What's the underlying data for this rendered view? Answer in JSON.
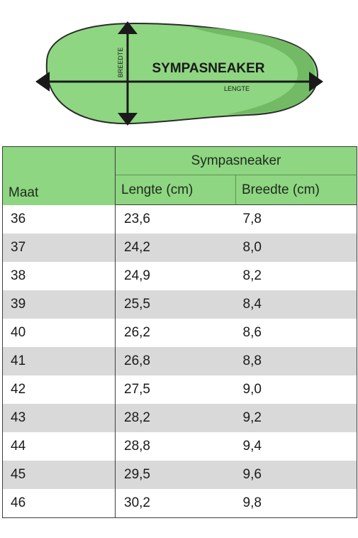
{
  "diagram": {
    "title": "SYMPASNEAKER",
    "length_label": "LENGTE",
    "width_label": "BREEDTE",
    "colors": {
      "insole": "#8ed681",
      "insole_dark": "#6fb860",
      "outline": "#2b2b2b"
    }
  },
  "table": {
    "group_header": "Sympasneaker",
    "columns": {
      "size": "Maat",
      "length": "Lengte (cm)",
      "width": "Breedte (cm)"
    },
    "rows": [
      {
        "size": "36",
        "length": "23,6",
        "width": "7,8"
      },
      {
        "size": "37",
        "length": "24,2",
        "width": "8,0"
      },
      {
        "size": "38",
        "length": "24,9",
        "width": "8,2"
      },
      {
        "size": "39",
        "length": "25,5",
        "width": "8,4"
      },
      {
        "size": "40",
        "length": "26,2",
        "width": "8,6"
      },
      {
        "size": "41",
        "length": "26,8",
        "width": "8,8"
      },
      {
        "size": "42",
        "length": "27,5",
        "width": "9,0"
      },
      {
        "size": "43",
        "length": "28,2",
        "width": "9,2"
      },
      {
        "size": "44",
        "length": "28,8",
        "width": "9,4"
      },
      {
        "size": "45",
        "length": "29,5",
        "width": "9,6"
      },
      {
        "size": "46",
        "length": "30,2",
        "width": "9,8"
      }
    ]
  }
}
